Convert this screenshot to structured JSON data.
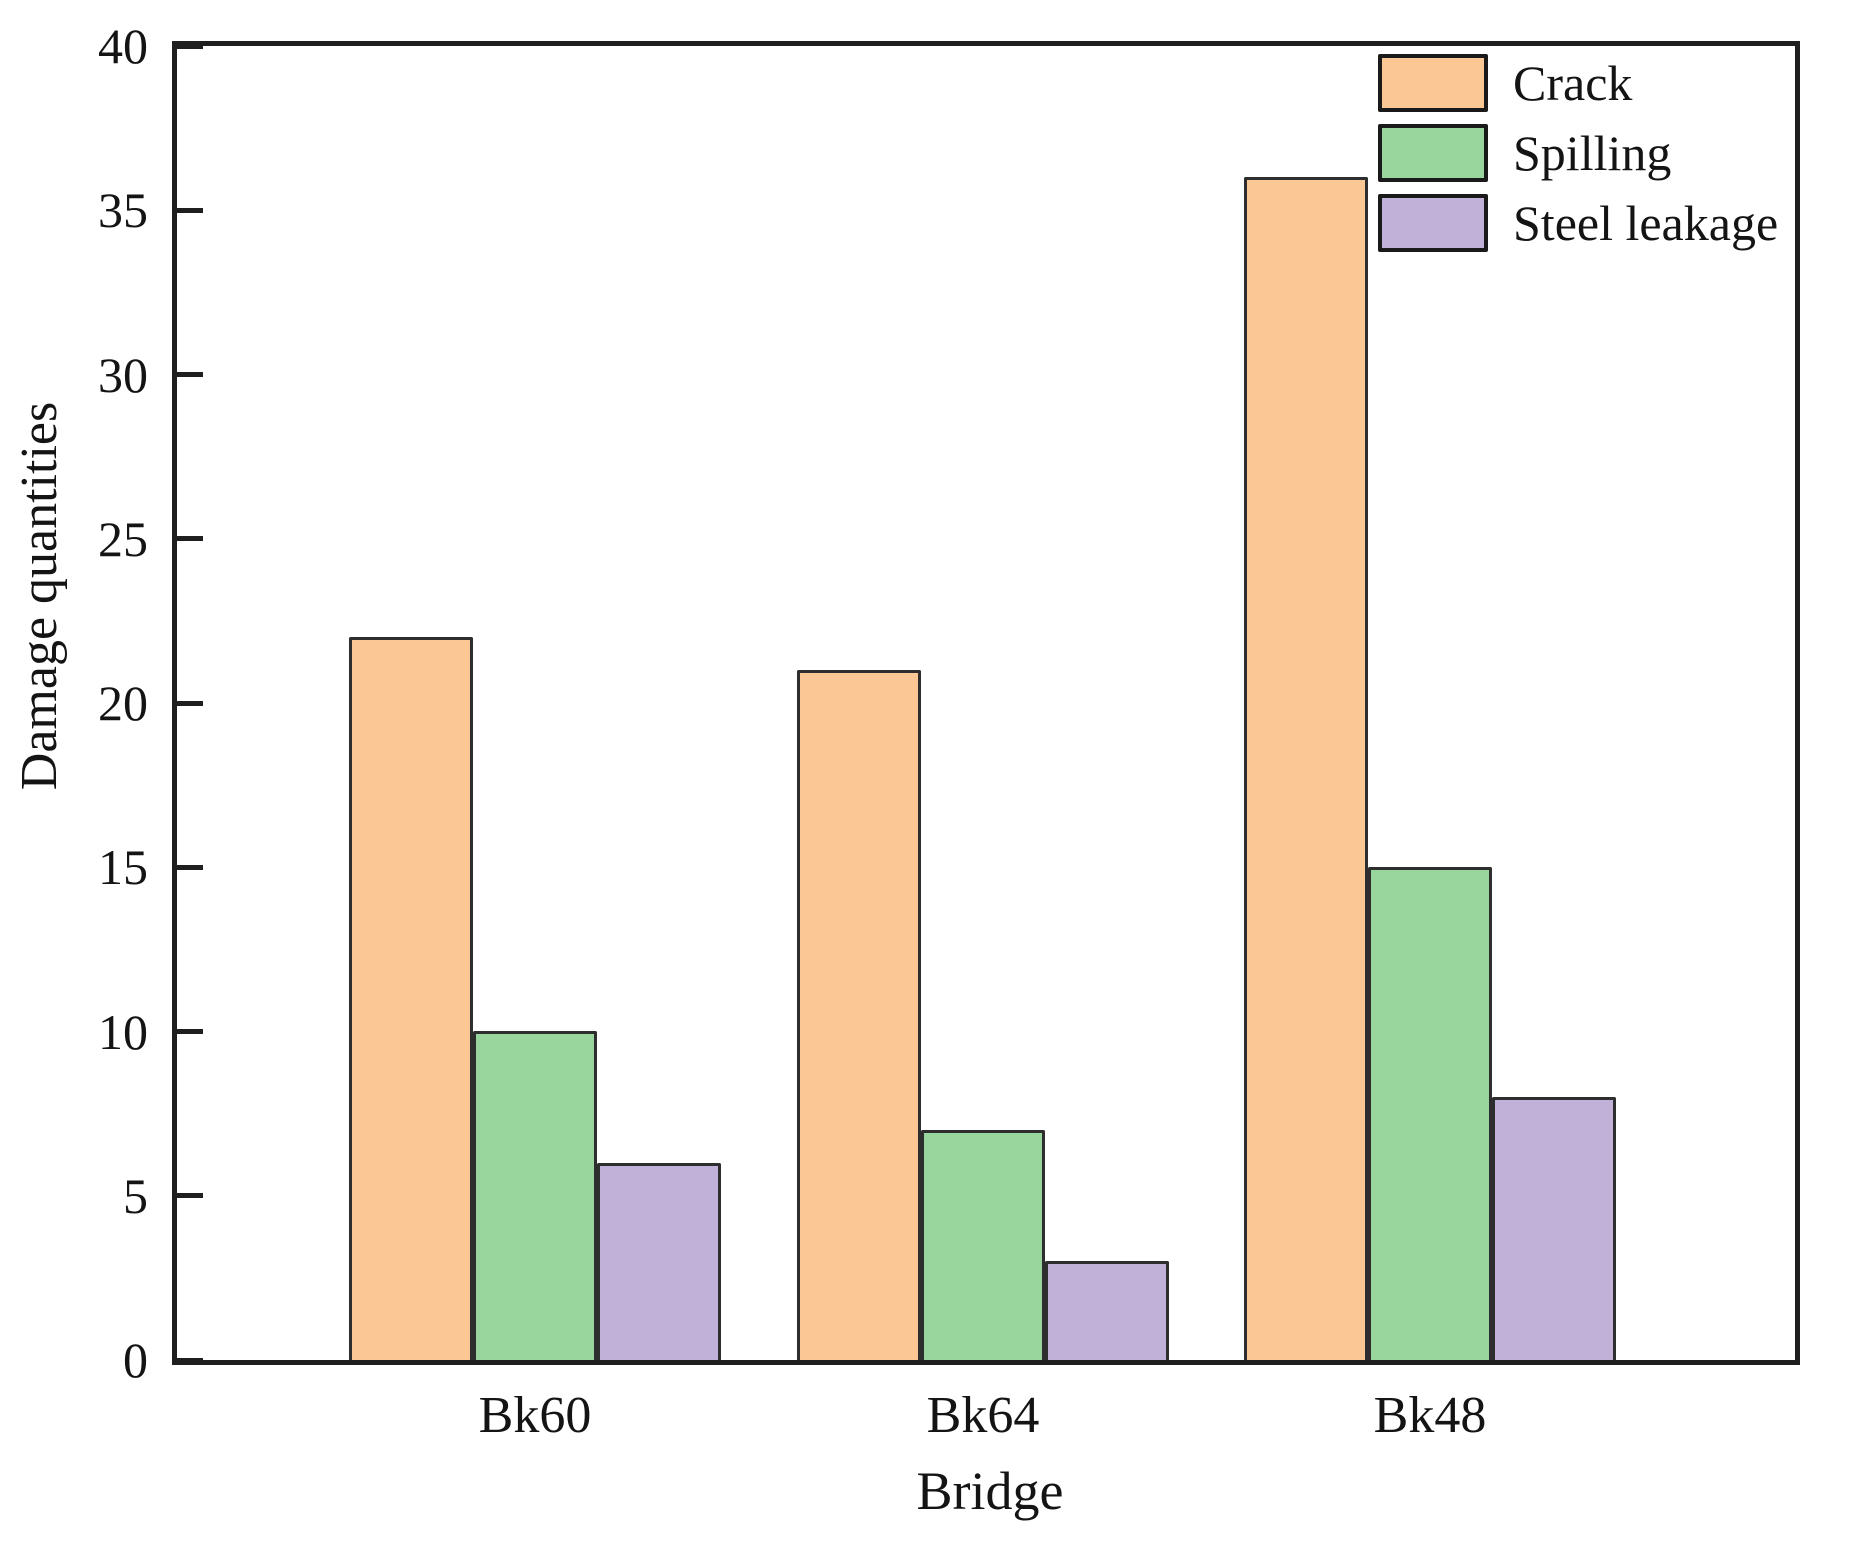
{
  "chart_data": {
    "type": "bar",
    "title": "",
    "categories": [
      "Bk60",
      "Bk64",
      "Bk48"
    ],
    "series": [
      {
        "name": "Crack",
        "color": "#FBC795",
        "values": [
          22,
          21,
          36
        ]
      },
      {
        "name": "Spilling",
        "color": "#99D69E",
        "values": [
          10,
          7,
          15
        ]
      },
      {
        "name": "Steel leakage",
        "color": "#C1B0D8",
        "values": [
          6,
          3,
          8
        ]
      }
    ],
    "xlabel": "Bridge",
    "ylabel": "Damage quantities",
    "ylim": [
      0,
      40
    ],
    "ytick_step": 5,
    "yticks": [
      0,
      5,
      10,
      15,
      20,
      25,
      30,
      35,
      40
    ],
    "grid": false,
    "legend_position": "top-right",
    "bar_edge_color": "#2e2e2e",
    "axis_color": "#1f1f1f",
    "text_color": "#141414",
    "background": "#ffffff"
  }
}
